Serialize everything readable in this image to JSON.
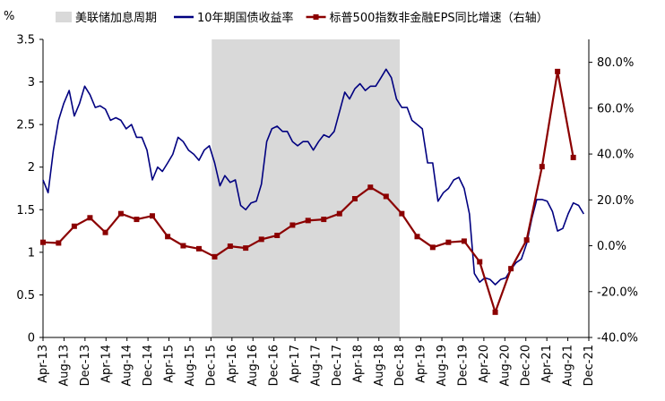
{
  "chart_data": {
    "type": "line",
    "y_left_unit": "%",
    "y_left_ticks": [
      "0",
      "0.5",
      "1",
      "1.5",
      "2",
      "2.5",
      "3",
      "3.5"
    ],
    "y_left_range": [
      0,
      3.5
    ],
    "y_right_ticks": [
      "-40.0%",
      "-20.0%",
      "0.0%",
      "20.0%",
      "40.0%",
      "60.0%",
      "80.0%"
    ],
    "y_right_range": [
      -40,
      90
    ],
    "x_range": [
      "2013-04-01",
      "2021-12-31"
    ],
    "x_ticks": [
      "Apr-13",
      "Aug-13",
      "Dec-13",
      "Apr-14",
      "Aug-14",
      "Dec-14",
      "Apr-15",
      "Aug-15",
      "Dec-15",
      "Apr-16",
      "Aug-16",
      "Dec-16",
      "Apr-17",
      "Aug-17",
      "Dec-17",
      "Apr-18",
      "Aug-18",
      "Dec-18",
      "Apr-19",
      "Aug-19",
      "Dec-19",
      "Apr-20",
      "Aug-20",
      "Dec-20",
      "Apr-21",
      "Aug-21",
      "Dec-21"
    ],
    "legend_position": "top",
    "shaded_period": {
      "name": "美联储加息周期",
      "start": "2015-12-15",
      "end": "2018-12-20",
      "color": "#d9d9d9"
    },
    "series": [
      {
        "name": "10年期国债收益率",
        "axis": "left",
        "color": "#000080",
        "points": [
          [
            "2013-04-01",
            1.85
          ],
          [
            "2013-05-01",
            1.7
          ],
          [
            "2013-06-01",
            2.2
          ],
          [
            "2013-07-01",
            2.55
          ],
          [
            "2013-08-01",
            2.75
          ],
          [
            "2013-09-01",
            2.9
          ],
          [
            "2013-10-01",
            2.6
          ],
          [
            "2013-11-01",
            2.75
          ],
          [
            "2013-12-01",
            2.95
          ],
          [
            "2014-01-01",
            2.85
          ],
          [
            "2014-02-01",
            2.7
          ],
          [
            "2014-03-01",
            2.72
          ],
          [
            "2014-04-01",
            2.68
          ],
          [
            "2014-05-01",
            2.55
          ],
          [
            "2014-06-01",
            2.58
          ],
          [
            "2014-07-01",
            2.55
          ],
          [
            "2014-08-01",
            2.45
          ],
          [
            "2014-09-01",
            2.5
          ],
          [
            "2014-10-01",
            2.35
          ],
          [
            "2014-11-01",
            2.35
          ],
          [
            "2014-12-01",
            2.2
          ],
          [
            "2015-01-01",
            1.85
          ],
          [
            "2015-02-01",
            2.0
          ],
          [
            "2015-03-01",
            1.95
          ],
          [
            "2015-04-01",
            2.05
          ],
          [
            "2015-05-01",
            2.15
          ],
          [
            "2015-06-01",
            2.35
          ],
          [
            "2015-07-01",
            2.3
          ],
          [
            "2015-08-01",
            2.2
          ],
          [
            "2015-09-01",
            2.15
          ],
          [
            "2015-10-01",
            2.08
          ],
          [
            "2015-11-01",
            2.2
          ],
          [
            "2015-12-01",
            2.25
          ],
          [
            "2016-01-01",
            2.05
          ],
          [
            "2016-02-01",
            1.78
          ],
          [
            "2016-03-01",
            1.9
          ],
          [
            "2016-04-01",
            1.82
          ],
          [
            "2016-05-01",
            1.85
          ],
          [
            "2016-06-01",
            1.55
          ],
          [
            "2016-07-01",
            1.5
          ],
          [
            "2016-08-01",
            1.58
          ],
          [
            "2016-09-01",
            1.6
          ],
          [
            "2016-10-01",
            1.8
          ],
          [
            "2016-11-01",
            2.3
          ],
          [
            "2016-12-01",
            2.45
          ],
          [
            "2017-01-01",
            2.48
          ],
          [
            "2017-02-01",
            2.42
          ],
          [
            "2017-03-01",
            2.42
          ],
          [
            "2017-04-01",
            2.3
          ],
          [
            "2017-05-01",
            2.25
          ],
          [
            "2017-06-01",
            2.3
          ],
          [
            "2017-07-01",
            2.3
          ],
          [
            "2017-08-01",
            2.2
          ],
          [
            "2017-09-01",
            2.3
          ],
          [
            "2017-10-01",
            2.38
          ],
          [
            "2017-11-01",
            2.35
          ],
          [
            "2017-12-01",
            2.42
          ],
          [
            "2018-01-01",
            2.65
          ],
          [
            "2018-02-01",
            2.88
          ],
          [
            "2018-03-01",
            2.8
          ],
          [
            "2018-04-01",
            2.92
          ],
          [
            "2018-05-01",
            2.98
          ],
          [
            "2018-06-01",
            2.9
          ],
          [
            "2018-07-01",
            2.95
          ],
          [
            "2018-08-01",
            2.95
          ],
          [
            "2018-09-01",
            3.05
          ],
          [
            "2018-10-01",
            3.15
          ],
          [
            "2018-11-01",
            3.05
          ],
          [
            "2018-12-01",
            2.8
          ],
          [
            "2019-01-01",
            2.7
          ],
          [
            "2019-02-01",
            2.7
          ],
          [
            "2019-03-01",
            2.55
          ],
          [
            "2019-04-01",
            2.5
          ],
          [
            "2019-05-01",
            2.45
          ],
          [
            "2019-06-01",
            2.05
          ],
          [
            "2019-07-01",
            2.05
          ],
          [
            "2019-08-01",
            1.6
          ],
          [
            "2019-09-01",
            1.7
          ],
          [
            "2019-10-01",
            1.75
          ],
          [
            "2019-11-01",
            1.85
          ],
          [
            "2019-12-01",
            1.88
          ],
          [
            "2020-01-01",
            1.75
          ],
          [
            "2020-02-01",
            1.45
          ],
          [
            "2020-03-01",
            0.75
          ],
          [
            "2020-04-01",
            0.65
          ],
          [
            "2020-05-01",
            0.7
          ],
          [
            "2020-06-01",
            0.68
          ],
          [
            "2020-07-01",
            0.62
          ],
          [
            "2020-08-01",
            0.68
          ],
          [
            "2020-09-01",
            0.7
          ],
          [
            "2020-10-01",
            0.8
          ],
          [
            "2020-11-01",
            0.88
          ],
          [
            "2020-12-01",
            0.92
          ],
          [
            "2021-01-01",
            1.1
          ],
          [
            "2021-02-01",
            1.4
          ],
          [
            "2021-03-01",
            1.62
          ],
          [
            "2021-04-01",
            1.62
          ],
          [
            "2021-05-01",
            1.6
          ],
          [
            "2021-06-01",
            1.48
          ],
          [
            "2021-07-01",
            1.25
          ],
          [
            "2021-08-01",
            1.28
          ],
          [
            "2021-09-01",
            1.45
          ],
          [
            "2021-10-01",
            1.58
          ],
          [
            "2021-11-01",
            1.55
          ],
          [
            "2021-12-01",
            1.45
          ]
        ]
      },
      {
        "name": "标普500指数非金融EPS同比增速（右轴）",
        "axis": "right",
        "color": "#8b0000",
        "points": [
          [
            "2013-04-01",
            1.5
          ],
          [
            "2013-07-01",
            1.2
          ],
          [
            "2013-10-01",
            8.5
          ],
          [
            "2014-01-01",
            12.2
          ],
          [
            "2014-04-01",
            5.8
          ],
          [
            "2014-07-01",
            14.0
          ],
          [
            "2014-10-01",
            11.5
          ],
          [
            "2015-01-01",
            13.0
          ],
          [
            "2015-04-01",
            4.0
          ],
          [
            "2015-07-01",
            0.0
          ],
          [
            "2015-10-01",
            -1.3
          ],
          [
            "2016-01-01",
            -4.8
          ],
          [
            "2016-04-01",
            -0.2
          ],
          [
            "2016-07-01",
            -1.0
          ],
          [
            "2016-10-01",
            2.8
          ],
          [
            "2017-01-01",
            4.5
          ],
          [
            "2017-04-01",
            9.0
          ],
          [
            "2017-07-01",
            11.0
          ],
          [
            "2017-10-01",
            11.5
          ],
          [
            "2018-01-01",
            14.0
          ],
          [
            "2018-04-01",
            20.5
          ],
          [
            "2018-07-01",
            25.5
          ],
          [
            "2018-10-01",
            21.5
          ],
          [
            "2019-01-01",
            14.0
          ],
          [
            "2019-04-01",
            4.0
          ],
          [
            "2019-07-01",
            -0.7
          ],
          [
            "2019-10-01",
            1.5
          ],
          [
            "2020-01-01",
            2.0
          ],
          [
            "2020-04-01",
            -7.0
          ],
          [
            "2020-07-01",
            -29.0
          ],
          [
            "2020-10-01",
            -10.0
          ],
          [
            "2021-01-01",
            2.5
          ],
          [
            "2021-04-01",
            34.5
          ],
          [
            "2021-07-01",
            76.0
          ],
          [
            "2021-10-01",
            38.5
          ]
        ]
      }
    ]
  }
}
